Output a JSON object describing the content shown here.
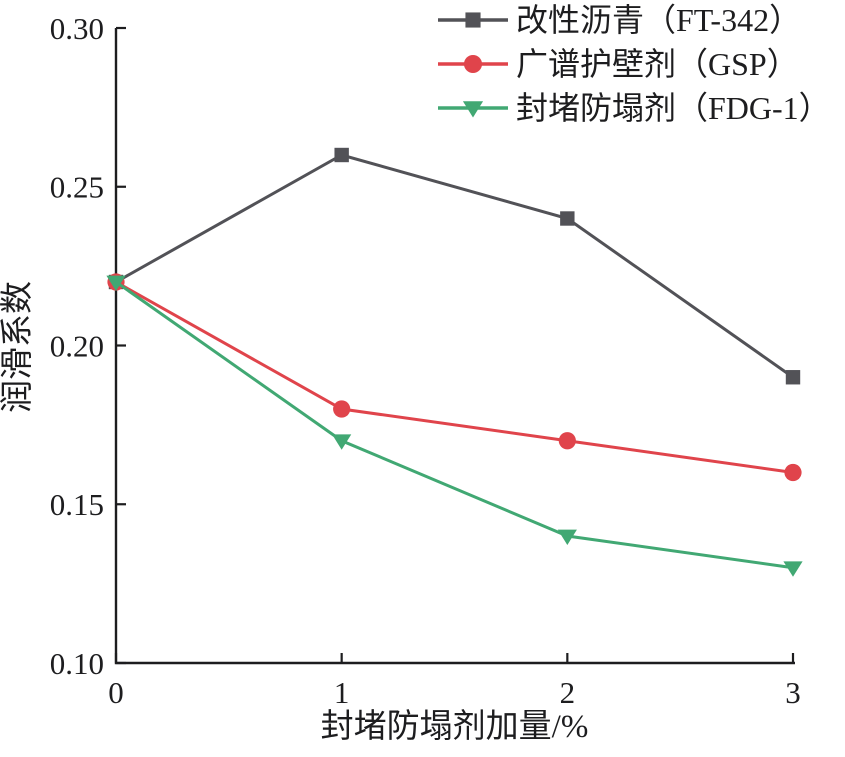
{
  "figure": {
    "background": "#ffffff",
    "text_color": "#1d1d1f",
    "axis_color": "#1d1d1f"
  },
  "chart_data": {
    "type": "line",
    "title": "",
    "xlabel": "封堵防塌剂加量/%",
    "ylabel": "润滑系数",
    "x": [
      0,
      1,
      2,
      3
    ],
    "x_ticks": [
      "0",
      "1",
      "2",
      "3"
    ],
    "y_ticks": [
      "0.10",
      "0.15",
      "0.20",
      "0.25",
      "0.30"
    ],
    "xlim": [
      0,
      3
    ],
    "ylim": [
      0.1,
      0.3
    ],
    "grid": false,
    "legend_position": "top-right",
    "series": [
      {
        "name": "改性沥青（FT-342）",
        "marker": "square",
        "color": "#525257",
        "values": [
          0.22,
          0.26,
          0.24,
          0.19
        ]
      },
      {
        "name": "广谱护壁剂（GSP）",
        "marker": "circle",
        "color": "#e0444b",
        "values": [
          0.22,
          0.18,
          0.17,
          0.16
        ]
      },
      {
        "name": "封堵防塌剂（FDG-1）",
        "marker": "triangle-down",
        "color": "#41a873",
        "values": [
          0.22,
          0.17,
          0.14,
          0.13
        ]
      }
    ]
  }
}
